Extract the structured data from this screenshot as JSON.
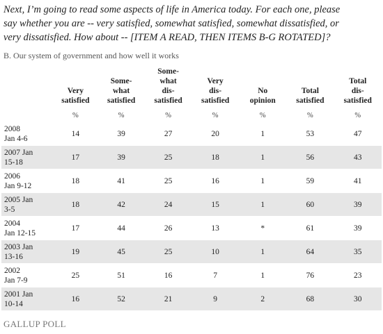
{
  "question": [
    "Next, I’m going to read some aspects of life in America today. For each one, please",
    "say whether you are -- very satisfied, somewhat satisfied, somewhat dissatisfied, or",
    "very dissatisfied. How about -- [ITEM A READ, THEN ITEMS B-G ROTATED]?"
  ],
  "subtitle": "B. Our system of government and how well it works",
  "table": {
    "headers": [
      [],
      [
        "Very",
        "satisfied"
      ],
      [
        "Some-",
        "what",
        "satisfied"
      ],
      [
        "Some-",
        "what",
        "dis-",
        "satisfied"
      ],
      [
        "Very",
        "dis-",
        "satisfied"
      ],
      [
        "No",
        "opinion"
      ],
      [
        "Total",
        "satisfied"
      ],
      [
        "Total",
        "dis-",
        "satisfied"
      ]
    ],
    "units": [
      "%",
      "%",
      "%",
      "%",
      "%",
      "%",
      "%"
    ],
    "rows": [
      [
        [
          "2008",
          "Jan 4-6"
        ],
        14,
        39,
        27,
        20,
        1,
        53,
        47
      ],
      [
        [
          "2007 Jan",
          "15-18"
        ],
        17,
        39,
        25,
        18,
        1,
        56,
        43
      ],
      [
        [
          "2006",
          "Jan 9-12"
        ],
        18,
        41,
        25,
        16,
        1,
        59,
        41
      ],
      [
        [
          "2005 Jan",
          "3-5"
        ],
        18,
        42,
        24,
        15,
        1,
        60,
        39
      ],
      [
        [
          "2004",
          "Jan 12-15"
        ],
        17,
        44,
        26,
        13,
        "*",
        61,
        39
      ],
      [
        [
          "2003 Jan",
          "13-16"
        ],
        19,
        45,
        25,
        10,
        1,
        64,
        35
      ],
      [
        [
          "2002",
          "Jan 7-9"
        ],
        25,
        51,
        16,
        7,
        1,
        76,
        23
      ],
      [
        [
          "2001 Jan",
          "10-14"
        ],
        16,
        52,
        21,
        9,
        2,
        68,
        30
      ]
    ]
  },
  "footer": "GALLUP POLL"
}
